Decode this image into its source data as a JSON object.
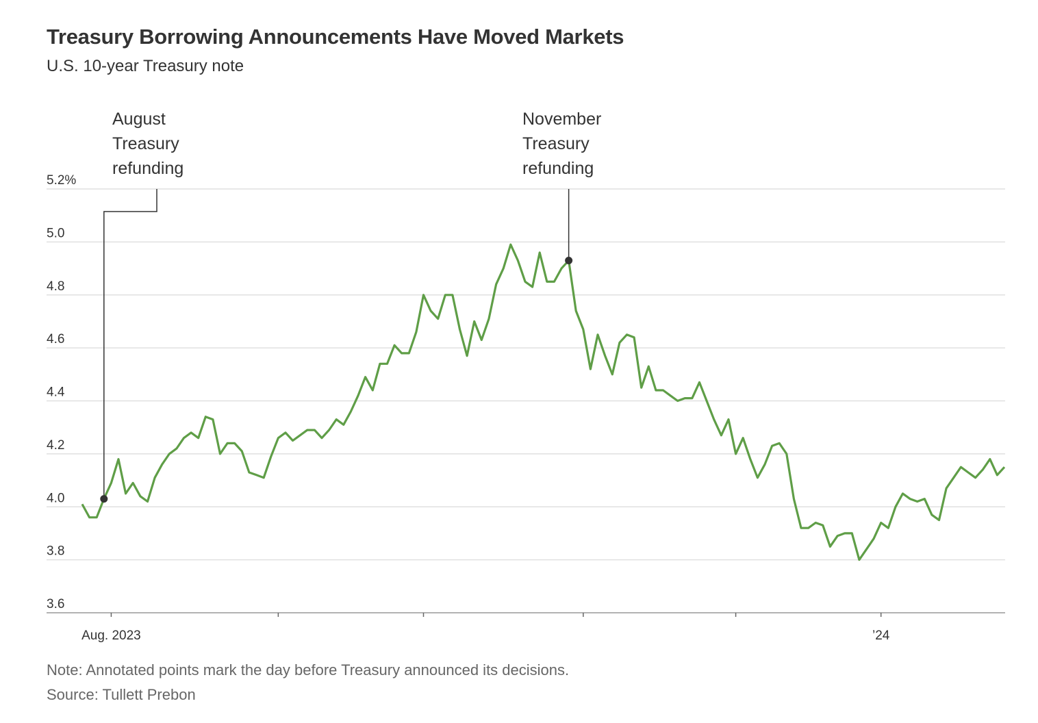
{
  "header": {
    "title": "Treasury Borrowing Announcements Have Moved Markets",
    "subtitle": "U.S. 10-year Treasury note"
  },
  "footer": {
    "note": "Note: Annotated points mark the day before Treasury announced its decisions.",
    "source": "Source: Tullett Prebon"
  },
  "chart_data": {
    "type": "line",
    "title": "Treasury Borrowing Announcements Have Moved Markets",
    "subtitle": "U.S. 10-year Treasury note",
    "ylim": [
      3.6,
      5.2
    ],
    "y_ticks": [
      {
        "value": 5.2,
        "label": "5.2%"
      },
      {
        "value": 5.0,
        "label": "5.0"
      },
      {
        "value": 4.8,
        "label": "4.8"
      },
      {
        "value": 4.6,
        "label": "4.6"
      },
      {
        "value": 4.4,
        "label": "4.4"
      },
      {
        "value": 4.2,
        "label": "4.2"
      },
      {
        "value": 4.0,
        "label": "4.0"
      },
      {
        "value": 3.8,
        "label": "3.8"
      },
      {
        "value": 3.6,
        "label": "3.6"
      }
    ],
    "x_ticks": [
      {
        "date": "2023-08-01",
        "label": "Aug. 2023"
      },
      {
        "date": "2023-09-01",
        "label": ""
      },
      {
        "date": "2023-10-02",
        "label": ""
      },
      {
        "date": "2023-11-01",
        "label": ""
      },
      {
        "date": "2023-12-01",
        "label": ""
      },
      {
        "date": "2024-01-02",
        "label": "’24"
      }
    ],
    "grid": true,
    "line_color": "#5f9e47",
    "series": [
      {
        "start_date": "2023-07-27",
        "frequency": "trading day",
        "values": [
          4.01,
          3.96,
          3.96,
          4.03,
          4.09,
          4.18,
          4.05,
          4.09,
          4.04,
          4.02,
          4.11,
          4.16,
          4.2,
          4.22,
          4.26,
          4.28,
          4.26,
          4.34,
          4.33,
          4.2,
          4.24,
          4.24,
          4.21,
          4.13,
          4.12,
          4.11,
          4.19,
          4.26,
          4.28,
          4.25,
          4.27,
          4.29,
          4.29,
          4.26,
          4.29,
          4.33,
          4.31,
          4.36,
          4.42,
          4.49,
          4.44,
          4.54,
          4.54,
          4.61,
          4.58,
          4.58,
          4.66,
          4.8,
          4.74,
          4.71,
          4.8,
          4.8,
          4.67,
          4.57,
          4.7,
          4.63,
          4.71,
          4.84,
          4.9,
          4.99,
          4.93,
          4.85,
          4.83,
          4.96,
          4.85,
          4.85,
          4.9,
          4.93,
          4.74,
          4.67,
          4.52,
          4.65,
          4.57,
          4.5,
          4.62,
          4.65,
          4.64,
          4.45,
          4.53,
          4.44,
          4.44,
          4.42,
          4.4,
          4.41,
          4.41,
          4.47,
          4.4,
          4.33,
          4.27,
          4.33,
          4.2,
          4.26,
          4.18,
          4.11,
          4.16,
          4.23,
          4.24,
          4.2,
          4.03,
          3.92,
          3.92,
          3.94,
          3.93,
          3.85,
          3.89,
          3.9,
          3.9,
          3.8,
          3.84,
          3.88,
          3.94,
          3.92,
          4.0,
          4.05,
          4.03,
          4.02,
          4.03,
          3.97,
          3.95,
          4.07,
          4.11,
          4.15,
          4.13,
          4.11,
          4.14,
          4.18,
          4.12,
          4.15
        ]
      }
    ],
    "annotations": [
      {
        "label_lines": [
          "August",
          "Treasury",
          "refunding"
        ],
        "date": "2023-08-01",
        "value": 4.03
      },
      {
        "label_lines": [
          "November",
          "Treasury",
          "refunding"
        ],
        "date": "2023-10-31",
        "value": 4.93
      }
    ]
  }
}
